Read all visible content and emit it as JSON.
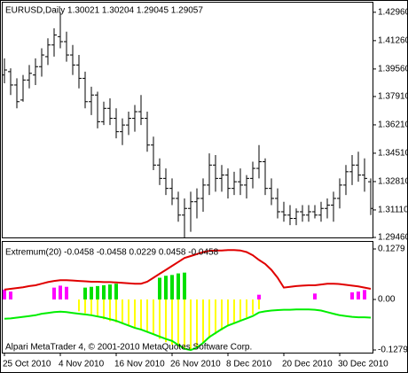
{
  "chart_data": [
    {
      "type": "ohlc",
      "title": "EURUSD,Daily  1.30021 1.30204 1.29045 1.29057",
      "color": "#000000",
      "categories": [
        "25 Oct 2010",
        null,
        null,
        null,
        null,
        null,
        null,
        null,
        null,
        "4 Nov 2010",
        null,
        null,
        null,
        null,
        null,
        null,
        null,
        null,
        "16 Nov 2010",
        null,
        null,
        null,
        null,
        null,
        null,
        null,
        null,
        "26 Nov 2010",
        null,
        null,
        null,
        null,
        null,
        null,
        null,
        null,
        "8 Dec 2010",
        null,
        null,
        null,
        null,
        null,
        null,
        null,
        null,
        "20 Dec 2010",
        null,
        null,
        null,
        null,
        null,
        null,
        null,
        null,
        "30 Dec 2010",
        null,
        null,
        null,
        null,
        null
      ],
      "open": [
        1.392,
        1.394,
        1.386,
        1.377,
        1.389,
        1.392,
        1.397,
        1.403,
        1.41,
        1.415,
        1.412,
        1.404,
        1.398,
        1.39,
        1.376,
        1.38,
        1.364,
        1.372,
        1.366,
        1.358,
        1.362,
        1.366,
        1.37,
        1.366,
        1.35,
        1.338,
        1.33,
        1.324,
        1.318,
        1.308,
        1.312,
        1.316,
        1.318,
        1.326,
        1.338,
        1.33,
        1.332,
        1.324,
        1.328,
        1.326,
        1.33,
        1.336,
        1.34,
        1.324,
        1.318,
        1.31,
        1.308,
        1.306,
        1.31,
        1.308,
        1.31,
        1.308,
        1.312,
        1.314,
        1.318,
        1.326,
        1.334,
        1.338,
        1.332,
        1.328
      ],
      "high": [
        1.402,
        1.396,
        1.39,
        1.392,
        1.398,
        1.402,
        1.408,
        1.414,
        1.42,
        1.4296,
        1.418,
        1.41,
        1.404,
        1.394,
        1.385,
        1.382,
        1.376,
        1.378,
        1.372,
        1.366,
        1.37,
        1.374,
        1.38,
        1.37,
        1.355,
        1.342,
        1.336,
        1.33,
        1.322,
        1.318,
        1.322,
        1.324,
        1.33,
        1.345,
        1.344,
        1.338,
        1.336,
        1.334,
        1.336,
        1.332,
        1.34,
        1.35,
        1.342,
        1.33,
        1.324,
        1.316,
        1.314,
        1.312,
        1.314,
        1.314,
        1.314,
        1.316,
        1.318,
        1.322,
        1.33,
        1.338,
        1.344,
        1.346,
        1.342,
        1.33
      ],
      "low": [
        1.387,
        1.38,
        1.372,
        1.376,
        1.384,
        1.386,
        1.391,
        1.398,
        1.403,
        1.408,
        1.4,
        1.392,
        1.384,
        1.372,
        1.368,
        1.36,
        1.362,
        1.362,
        1.354,
        1.35,
        1.356,
        1.358,
        1.362,
        1.346,
        1.335,
        1.326,
        1.32,
        1.314,
        1.304,
        1.2946,
        1.298,
        1.306,
        1.31,
        1.32,
        1.322,
        1.322,
        1.318,
        1.32,
        1.32,
        1.318,
        1.324,
        1.33,
        1.32,
        1.314,
        1.306,
        1.304,
        1.302,
        1.302,
        1.304,
        1.304,
        1.306,
        1.304,
        1.306,
        1.304,
        1.312,
        1.32,
        1.326,
        1.328,
        1.322,
        1.308
      ],
      "close": [
        1.395,
        1.386,
        1.376,
        1.389,
        1.393,
        1.397,
        1.404,
        1.41,
        1.416,
        1.412,
        1.404,
        1.398,
        1.39,
        1.376,
        1.38,
        1.364,
        1.372,
        1.366,
        1.358,
        1.362,
        1.366,
        1.37,
        1.366,
        1.35,
        1.338,
        1.33,
        1.324,
        1.318,
        1.308,
        1.312,
        1.316,
        1.318,
        1.326,
        1.338,
        1.33,
        1.332,
        1.324,
        1.328,
        1.326,
        1.33,
        1.336,
        1.34,
        1.324,
        1.318,
        1.31,
        1.308,
        1.306,
        1.31,
        1.308,
        1.31,
        1.308,
        1.312,
        1.314,
        1.318,
        1.326,
        1.334,
        1.338,
        1.332,
        1.33,
        1.312
      ],
      "ylim": [
        1.2946,
        1.4359
      ],
      "yticks": [
        {
          "value": 1.4296,
          "label": "1.42960"
        },
        {
          "value": 1.4126,
          "label": "1.41260"
        },
        {
          "value": 1.3956,
          "label": "1.39560"
        },
        {
          "value": 1.3791,
          "label": "1.37910"
        },
        {
          "value": 1.3621,
          "label": "1.36210"
        },
        {
          "value": 1.3451,
          "label": "1.34510"
        },
        {
          "value": 1.3281,
          "label": "1.32810"
        },
        {
          "value": 1.3111,
          "label": "1.31110"
        },
        {
          "value": 1.2946,
          "label": "1.29460"
        }
      ]
    },
    {
      "type": "combo",
      "title": "Extremum(20) -0.0458 -0.0458 0.0229 0.0458 -0.0458",
      "annotation": "Alpari MetaTrader 4, © 2001-2010 MetaQuotes Software Corp.",
      "ylim": [
        -0.1346,
        0.1481
      ],
      "yticks": [
        0.1279,
        {
          "value": 0,
          "label": "0.00"
        },
        -0.1279
      ],
      "series": [
        {
          "kind": "bar",
          "color": "#ffff00",
          "values": [
            null,
            null,
            null,
            null,
            null,
            null,
            null,
            null,
            null,
            null,
            null,
            null,
            -0.03,
            -0.035,
            -0.04,
            -0.045,
            -0.05,
            -0.055,
            -0.058,
            -0.062,
            -0.065,
            -0.07,
            -0.075,
            -0.082,
            -0.09,
            -0.1,
            -0.108,
            -0.115,
            -0.12,
            -0.124,
            -0.126,
            -0.12,
            -0.11,
            -0.098,
            -0.088,
            -0.078,
            -0.068,
            -0.06,
            -0.052,
            -0.045,
            -0.038,
            -0.025,
            null,
            null,
            null,
            null,
            null,
            null,
            null,
            null,
            null,
            null,
            null,
            null,
            null,
            null,
            null,
            null,
            null,
            null
          ]
        },
        {
          "kind": "bar",
          "color": "#00e000",
          "values": [
            null,
            null,
            null,
            null,
            null,
            null,
            null,
            null,
            null,
            null,
            null,
            null,
            null,
            0.03,
            0.032,
            0.034,
            0.036,
            0.038,
            0.04,
            null,
            null,
            null,
            null,
            null,
            null,
            0.055,
            0.06,
            0.062,
            0.066,
            0.068,
            null,
            null,
            null,
            null,
            null,
            null,
            null,
            null,
            null,
            null,
            null,
            null,
            null,
            null,
            null,
            null,
            null,
            null,
            null,
            null,
            null,
            null,
            null,
            null,
            null,
            null,
            null,
            null,
            null,
            null
          ]
        },
        {
          "kind": "bar",
          "color": "#ff00ff",
          "values": [
            0.025,
            0.02,
            null,
            null,
            null,
            null,
            null,
            null,
            0.03,
            0.035,
            0.032,
            null,
            null,
            null,
            null,
            null,
            null,
            null,
            null,
            null,
            null,
            null,
            null,
            null,
            null,
            null,
            null,
            null,
            null,
            null,
            null,
            null,
            null,
            null,
            null,
            null,
            null,
            null,
            null,
            null,
            null,
            0.012,
            null,
            null,
            null,
            null,
            null,
            null,
            null,
            null,
            0.015,
            null,
            null,
            null,
            null,
            null,
            0.018,
            0.02,
            0.024,
            null
          ]
        },
        {
          "kind": "line",
          "color": "#e00000",
          "values": [
            0.025,
            0.027,
            0.029,
            0.031,
            0.034,
            0.036,
            0.04,
            0.044,
            0.047,
            0.049,
            0.049,
            0.048,
            0.047,
            0.046,
            0.045,
            0.045,
            0.044,
            0.044,
            0.043,
            0.042,
            0.041,
            0.04,
            0.04,
            0.045,
            0.055,
            0.065,
            0.075,
            0.085,
            0.095,
            0.105,
            0.11,
            0.115,
            0.12,
            0.123,
            0.124,
            0.124,
            0.125,
            0.125,
            0.124,
            0.12,
            0.112,
            0.1,
            0.09,
            0.075,
            0.055,
            0.03,
            0.032,
            0.034,
            0.035,
            0.036,
            0.036,
            0.038,
            0.04,
            0.04,
            0.039,
            0.037,
            0.035,
            0.033,
            0.03,
            0.027
          ]
        },
        {
          "kind": "line",
          "color": "#00ee00",
          "values": [
            -0.049,
            -0.048,
            -0.046,
            -0.044,
            -0.042,
            -0.04,
            -0.036,
            -0.034,
            -0.032,
            -0.031,
            -0.032,
            -0.034,
            -0.036,
            -0.038,
            -0.04,
            -0.043,
            -0.046,
            -0.05,
            -0.054,
            -0.06,
            -0.066,
            -0.072,
            -0.076,
            -0.082,
            -0.088,
            -0.094,
            -0.1,
            -0.105,
            -0.115,
            -0.125,
            -0.128,
            -0.122,
            -0.11,
            -0.095,
            -0.085,
            -0.075,
            -0.066,
            -0.06,
            -0.054,
            -0.048,
            -0.042,
            -0.033,
            -0.03,
            -0.028,
            -0.027,
            -0.026,
            -0.026,
            -0.025,
            -0.025,
            -0.025,
            -0.026,
            -0.028,
            -0.032,
            -0.036,
            -0.04,
            -0.042,
            -0.044,
            -0.045,
            -0.045,
            -0.046
          ]
        }
      ]
    }
  ]
}
